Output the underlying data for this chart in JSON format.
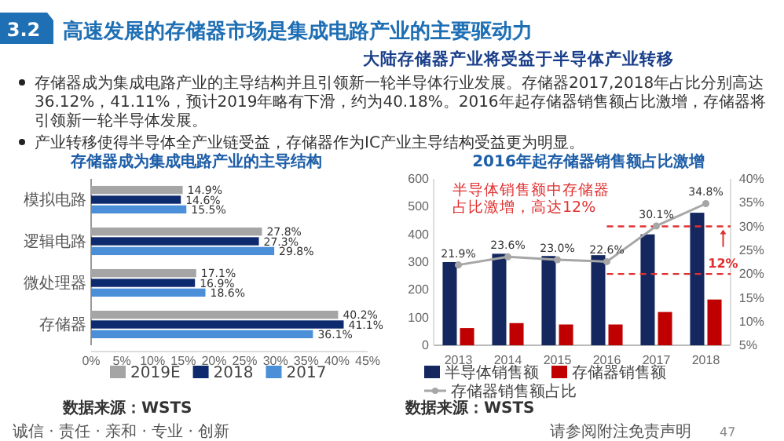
{
  "chart_data": [
    {
      "type": "other",
      "title": "高速发展的存储器市场是集成电路产业的主要驱动力",
      "subtitle": "大陆存储器产业将受益于半导体产业转移",
      "annotations": [
        "3.2",
        "存储器成为集成电路产业的主导结构并且引领新一轮半导体行业发展。存储器2017,2018年占比分别高达36.12%，41.11%，预计2019年略有下滑，约为40.18%。2016年起存储器销售额占比激增，存储器将引领新一轮半导体发展。",
        "产业转移使得半导体全产业链受益，存储器作为IC产业主导结构受益更为明显。",
        "诚信 · 责任 · 亲和 · 专业 · 创新",
        "请参阅附注免责声明",
        "47"
      ]
    },
    {
      "type": "bar",
      "orientation": "horizontal",
      "title": "存储器成为集成电路产业的主导结构",
      "categories": [
        "模拟电路",
        "逻辑电路",
        "微处理器",
        "存储器"
      ],
      "xlim": [
        0,
        45
      ],
      "xticks": [
        {
          "value": 0,
          "label": "0%"
        },
        {
          "value": 5,
          "label": "5%"
        },
        {
          "value": 10,
          "label": "10%"
        },
        {
          "value": 15,
          "label": "15%"
        },
        {
          "value": 20,
          "label": "20%"
        },
        {
          "value": 25,
          "label": "25%"
        },
        {
          "value": 30,
          "label": "30%"
        },
        {
          "value": 35,
          "label": "35%"
        },
        {
          "value": 40,
          "label": "40%"
        },
        {
          "value": 45,
          "label": "45%"
        }
      ],
      "legend": "bottom",
      "series": [
        {
          "name": "2019E",
          "color": "#a5a5a5",
          "values": [
            14.9,
            27.8,
            17.1,
            40.2
          ],
          "value_labels": [
            "14.9%",
            "27.8%",
            "17.1%",
            "40.2%"
          ]
        },
        {
          "name": "2018",
          "color": "#0e2a6e",
          "values": [
            14.6,
            27.3,
            16.9,
            41.1
          ],
          "value_labels": [
            "14.6%",
            "27.3%",
            "16.9%",
            "41.1%"
          ]
        },
        {
          "name": "2017",
          "color": "#4a8fd8",
          "values": [
            15.5,
            29.8,
            18.6,
            36.1
          ],
          "value_labels": [
            "15.5%",
            "29.8%",
            "18.6%",
            "36.1%"
          ]
        }
      ],
      "annotations": [
        "数据来源：WSTS"
      ]
    },
    {
      "type": "bar",
      "title": "2016年起存储器销售额占比激增",
      "categories": [
        "2013",
        "2014",
        "2015",
        "2016",
        "2017",
        "2018"
      ],
      "ylim": [
        0,
        600
      ],
      "yticks": [
        0,
        100,
        200,
        300,
        400,
        500,
        600
      ],
      "y2lim": [
        5,
        40
      ],
      "y2ticks": [
        {
          "value": 5,
          "label": "5%"
        },
        {
          "value": 10,
          "label": "10%"
        },
        {
          "value": 15,
          "label": "15%"
        },
        {
          "value": 20,
          "label": "20%"
        },
        {
          "value": 25,
          "label": "25%"
        },
        {
          "value": 30,
          "label": "30%"
        },
        {
          "value": 35,
          "label": "35%"
        },
        {
          "value": 40,
          "label": "40%"
        }
      ],
      "legend": "bottom",
      "marker": "circle",
      "series": [
        {
          "name": "半导体销售额",
          "color": "#14285f",
          "values": [
            300,
            330,
            322,
            325,
            400,
            478
          ]
        },
        {
          "name": "存储器销售额",
          "color": "#c00000",
          "values": [
            62,
            80,
            75,
            75,
            120,
            165
          ]
        },
        {
          "name": "存储器销售额占比",
          "type": "line",
          "axis": "y2",
          "color": "#a6a6a6",
          "values": [
            21.9,
            23.6,
            23.0,
            22.6,
            30.1,
            34.8
          ],
          "value_labels": [
            "21.9%",
            "23.6%",
            "23.0%",
            "22.6%",
            "30.1%",
            "34.8%"
          ]
        }
      ],
      "ref_lines": [
        {
          "axis": "y2",
          "value": 30,
          "color": "#e03030",
          "line_style": "dashed"
        },
        {
          "axis": "y2",
          "value": 20,
          "color": "#e03030",
          "line_style": "dashed"
        }
      ],
      "annotations": [
        "半导体销售额中存储器占比激增，高达12%",
        "12%",
        "数据来源：WSTS"
      ]
    }
  ]
}
